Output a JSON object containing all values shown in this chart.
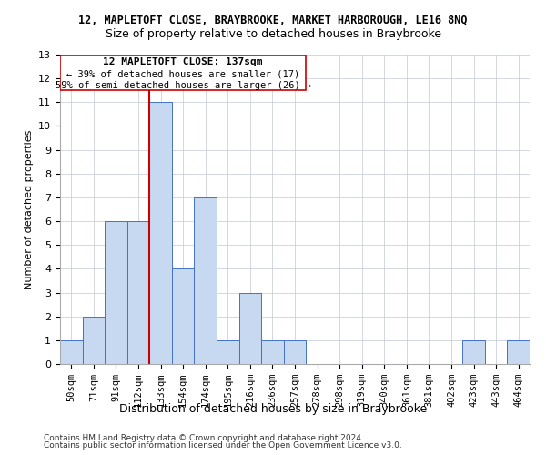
{
  "title1": "12, MAPLETOFT CLOSE, BRAYBROOKE, MARKET HARBOROUGH, LE16 8NQ",
  "title2": "Size of property relative to detached houses in Braybrooke",
  "xlabel": "Distribution of detached houses by size in Braybrooke",
  "ylabel": "Number of detached properties",
  "bins": [
    "50sqm",
    "71sqm",
    "91sqm",
    "112sqm",
    "133sqm",
    "154sqm",
    "174sqm",
    "195sqm",
    "216sqm",
    "236sqm",
    "257sqm",
    "278sqm",
    "298sqm",
    "319sqm",
    "340sqm",
    "361sqm",
    "381sqm",
    "402sqm",
    "423sqm",
    "443sqm",
    "464sqm"
  ],
  "bar_values": [
    1,
    2,
    6,
    6,
    11,
    4,
    7,
    1,
    3,
    1,
    1,
    0,
    0,
    0,
    0,
    0,
    0,
    0,
    1,
    0,
    1
  ],
  "bar_color": "#c6d9f0",
  "bar_edge_color": "#4472c4",
  "red_line_index": 4,
  "vline_color": "#cc0000",
  "ylim": [
    0,
    13
  ],
  "yticks": [
    0,
    1,
    2,
    3,
    4,
    5,
    6,
    7,
    8,
    9,
    10,
    11,
    12,
    13
  ],
  "annotation_title": "12 MAPLETOFT CLOSE: 137sqm",
  "annotation_line1": "← 39% of detached houses are smaller (17)",
  "annotation_line2": "59% of semi-detached houses are larger (26) →",
  "footer1": "Contains HM Land Registry data © Crown copyright and database right 2024.",
  "footer2": "Contains public sector information licensed under the Open Government Licence v3.0.",
  "background_color": "#ffffff",
  "grid_color": "#c0c8d8"
}
